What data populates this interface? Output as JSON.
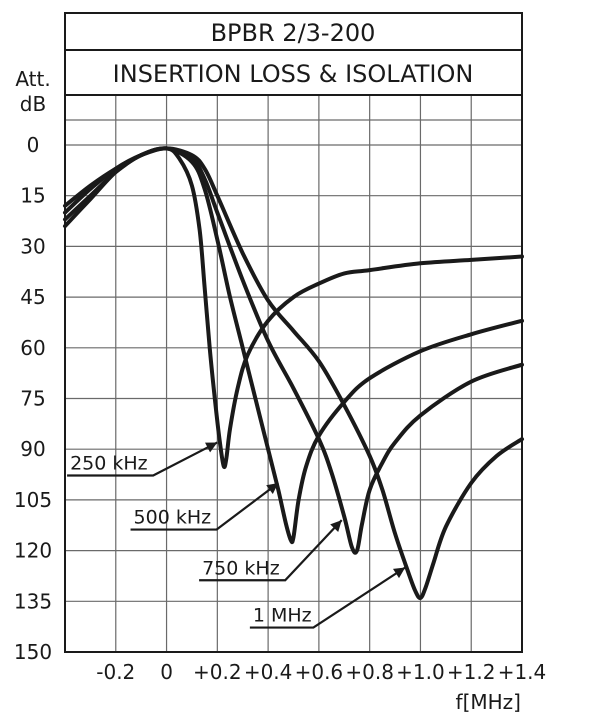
{
  "chart_data": {
    "type": "line",
    "title": "BPBR 2/3-200",
    "subtitle": "INSERTION LOSS & ISOLATION",
    "ylabel_line1": "Att.",
    "ylabel_line2": "dB",
    "xlabel": "f[MHz]",
    "xlim": [
      -0.4,
      1.4
    ],
    "ylim": [
      0,
      150
    ],
    "y_inverted": true,
    "grid": true,
    "x_ticks": [
      {
        "value": -0.2,
        "label": "-0.2"
      },
      {
        "value": 0,
        "label": "0"
      },
      {
        "value": 0.2,
        "label": "+0.2"
      },
      {
        "value": 0.4,
        "label": "+0.4"
      },
      {
        "value": 0.6,
        "label": "+0.6"
      },
      {
        "value": 0.8,
        "label": "+0.8"
      },
      {
        "value": 1.0,
        "label": "+1.0"
      },
      {
        "value": 1.2,
        "label": "+1.2"
      },
      {
        "value": 1.4,
        "label": "+1.4"
      }
    ],
    "y_ticks": [
      {
        "value": 0,
        "label": "0"
      },
      {
        "value": 15,
        "label": "15"
      },
      {
        "value": 30,
        "label": "30"
      },
      {
        "value": 45,
        "label": "45"
      },
      {
        "value": 60,
        "label": "60"
      },
      {
        "value": 75,
        "label": "75"
      },
      {
        "value": 90,
        "label": "90"
      },
      {
        "value": 105,
        "label": "105"
      },
      {
        "value": 120,
        "label": "120"
      },
      {
        "value": 135,
        "label": "135"
      },
      {
        "value": 150,
        "label": "150"
      }
    ],
    "series": [
      {
        "name": "250 kHz",
        "x": [
          -0.4,
          -0.3,
          -0.2,
          -0.1,
          0,
          0.05,
          0.1,
          0.13,
          0.15,
          0.17,
          0.19,
          0.21,
          0.225,
          0.235,
          0.25,
          0.28,
          0.32,
          0.4,
          0.5,
          0.6,
          0.7,
          0.8,
          1.0,
          1.2,
          1.4
        ],
        "y": [
          18,
          12,
          7,
          3,
          1,
          4,
          12,
          25,
          42,
          60,
          75,
          88,
          95,
          93,
          84,
          72,
          62,
          52,
          45,
          41,
          38,
          37,
          35,
          34,
          33
        ]
      },
      {
        "name": "500 kHz",
        "x": [
          -0.4,
          -0.3,
          -0.2,
          -0.1,
          0,
          0.1,
          0.15,
          0.2,
          0.25,
          0.3,
          0.35,
          0.4,
          0.44,
          0.47,
          0.49,
          0.5,
          0.52,
          0.55,
          0.6,
          0.7,
          0.8,
          1.0,
          1.2,
          1.4
        ],
        "y": [
          20,
          13,
          7,
          3,
          1,
          5,
          13,
          28,
          45,
          60,
          75,
          90,
          102,
          112,
          117,
          116,
          105,
          95,
          86,
          76,
          69,
          61,
          56,
          52
        ]
      },
      {
        "name": "750 kHz",
        "x": [
          -0.4,
          -0.3,
          -0.2,
          -0.1,
          0,
          0.1,
          0.15,
          0.2,
          0.3,
          0.4,
          0.5,
          0.6,
          0.65,
          0.7,
          0.73,
          0.75,
          0.77,
          0.8,
          0.85,
          0.9,
          1.0,
          1.2,
          1.4
        ],
        "y": [
          22,
          15,
          8,
          3,
          1,
          4,
          10,
          20,
          40,
          58,
          72,
          87,
          97,
          110,
          119,
          120,
          112,
          102,
          94,
          88,
          80,
          70,
          65
        ]
      },
      {
        "name": "1 MHz",
        "x": [
          -0.4,
          -0.3,
          -0.2,
          -0.1,
          0,
          0.1,
          0.15,
          0.2,
          0.3,
          0.4,
          0.5,
          0.6,
          0.7,
          0.8,
          0.85,
          0.9,
          0.95,
          0.98,
          1.0,
          1.02,
          1.05,
          1.1,
          1.2,
          1.3,
          1.4
        ],
        "y": [
          24,
          16,
          8,
          3,
          1,
          3,
          7,
          15,
          32,
          46,
          55,
          64,
          77,
          92,
          102,
          115,
          126,
          132,
          134,
          131,
          124,
          113,
          100,
          92,
          87
        ]
      }
    ],
    "annotations": [
      {
        "text": "250 kHz",
        "series": 0,
        "label_x": -0.38,
        "label_y": 96,
        "arrow_to_x": 0.2,
        "arrow_to_y": 88
      },
      {
        "text": "500 kHz",
        "series": 1,
        "label_x": -0.13,
        "label_y": 112,
        "arrow_to_x": 0.44,
        "arrow_to_y": 100
      },
      {
        "text": "750 kHz",
        "series": 2,
        "label_x": 0.14,
        "label_y": 127,
        "arrow_to_x": 0.69,
        "arrow_to_y": 111
      },
      {
        "text": "1 MHz",
        "series": 3,
        "label_x": 0.34,
        "label_y": 141,
        "arrow_to_x": 0.94,
        "arrow_to_y": 125
      }
    ]
  }
}
